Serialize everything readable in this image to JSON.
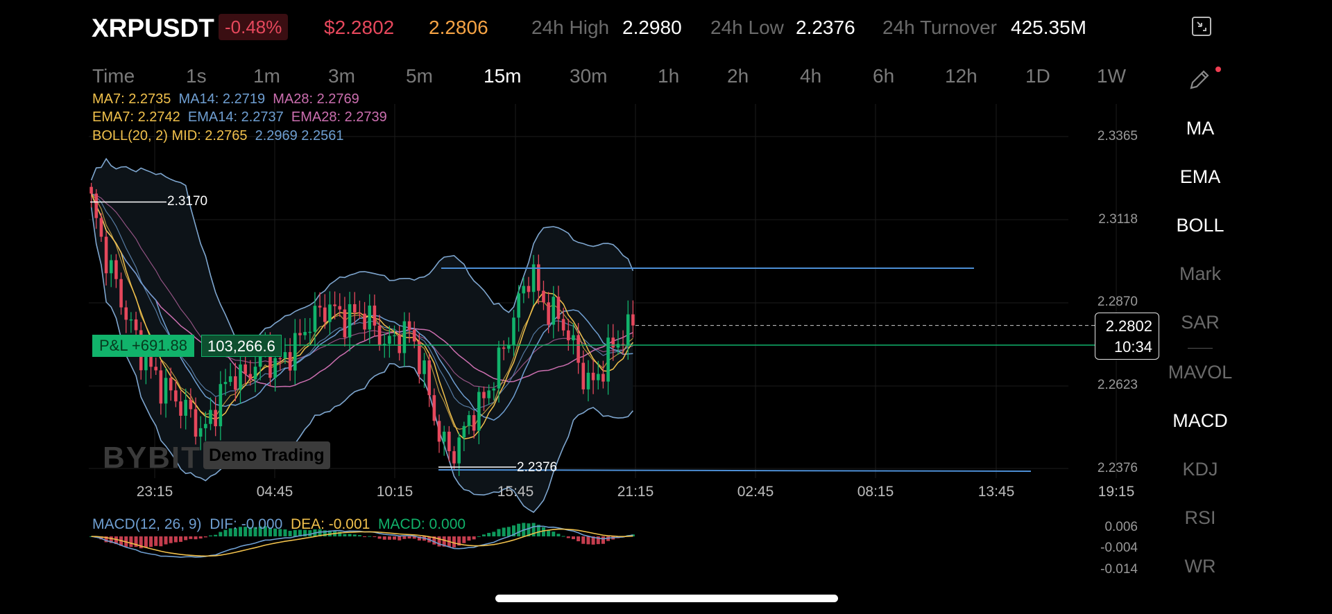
{
  "header": {
    "symbol": "XRPUSDT",
    "change_pct": "-0.48%",
    "last_price": "$2.2802",
    "mark_price": "2.2806",
    "high_label": "24h High",
    "high_value": "2.2980",
    "low_label": "24h Low",
    "low_value": "2.2376",
    "turnover_label": "24h Turnover",
    "turnover_value": "425.35M",
    "fullscreen_icon": "exit-fullscreen-icon"
  },
  "timeframes": {
    "items": [
      "Time",
      "1s",
      "1m",
      "3m",
      "5m",
      "15m",
      "30m",
      "1h",
      "2h",
      "4h",
      "6h",
      "12h",
      "1D",
      "1W"
    ],
    "selected": "15m"
  },
  "legends": {
    "ma7": "MA7: 2.2735",
    "ma14": "MA14: 2.2719",
    "ma28": "MA28: 2.2769",
    "ema7": "EMA7: 2.2742",
    "ema14": "EMA14: 2.2737",
    "ema28": "EMA28: 2.2739",
    "boll": "BOLL(20, 2) MID: 2.2765",
    "boll_ub_lb": "2.2969 2.2561",
    "macd_name": "MACD(12, 26, 9)",
    "dif": "DIF: -0.000",
    "dea": "DEA: -0.001",
    "macd": "MACD: 0.000"
  },
  "indicators": {
    "items": [
      "MA",
      "EMA",
      "BOLL",
      "Mark",
      "SAR",
      "MAVOL",
      "MACD",
      "KDJ",
      "RSI",
      "WR"
    ],
    "active": [
      "MA",
      "EMA",
      "BOLL",
      "MACD"
    ]
  },
  "price_axis": [
    "2.3365",
    "2.3118",
    "2.2870",
    "2.2623",
    "2.2376"
  ],
  "macd_axis": [
    "0.006",
    "-0.004",
    "-0.014"
  ],
  "time_axis": [
    "23:15",
    "04:45",
    "10:15",
    "15:45",
    "21:15",
    "02:45",
    "08:15",
    "13:45",
    "19:15"
  ],
  "current": {
    "price": "2.2802",
    "countdown": "10:34"
  },
  "position": {
    "pnl": "P&L +691.88",
    "size": "103,266.6"
  },
  "levels": {
    "high": "2.3170",
    "low": "2.2376"
  },
  "watermark": {
    "brand": "BYBIT",
    "badge": "Demo Trading"
  },
  "colors": {
    "up": "#11b36b",
    "down": "#e6485c",
    "ma7": "#f1c14c",
    "ma14": "#6f9fd2",
    "ma28": "#cc6fb0",
    "boll": "#7ea6cf",
    "mark": "#f7a445"
  },
  "chart_data": {
    "type": "candlestick",
    "interval": "15m",
    "ylim": [
      2.2376,
      2.3365
    ],
    "current_price": 2.2802,
    "high_marker": 2.317,
    "low_marker": 2.2376,
    "close_path": [
      2.317,
      2.305,
      2.296,
      2.287,
      2.279,
      2.271,
      2.266,
      2.262,
      2.259,
      2.256,
      2.252,
      2.248,
      2.255,
      2.262,
      2.266,
      2.264,
      2.269,
      2.272,
      2.268,
      2.271,
      2.274,
      2.28,
      2.283,
      2.286,
      2.284,
      2.282,
      2.284,
      2.283,
      2.278,
      2.274,
      2.277,
      2.279,
      2.272,
      2.26,
      2.248,
      2.242,
      2.245,
      2.253,
      2.256,
      2.262,
      2.27,
      2.279,
      2.289,
      2.297,
      2.288,
      2.284,
      2.282,
      2.275,
      2.266,
      2.262,
      2.268,
      2.274,
      2.277,
      2.2802
    ]
  }
}
